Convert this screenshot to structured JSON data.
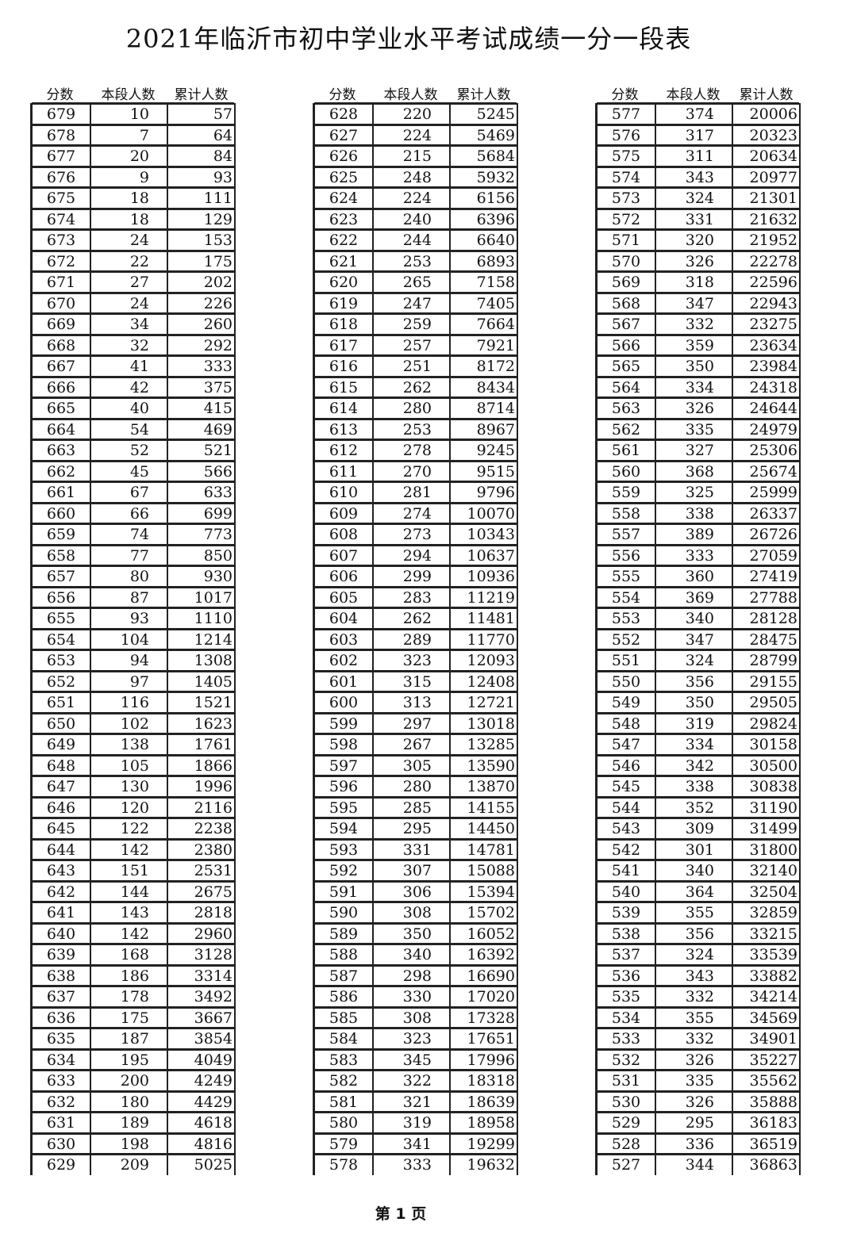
{
  "title": "2021年临沂市初中学业水平考试成绩一分一段表",
  "headers": [
    "分数",
    "本段人数",
    "累计人数"
  ],
  "footer": "第 1 页",
  "tables": [
    {
      "rows": [
        [
          "679",
          "10",
          "57"
        ],
        [
          "678",
          "7",
          "64"
        ],
        [
          "677",
          "20",
          "84"
        ],
        [
          "676",
          "9",
          "93"
        ],
        [
          "675",
          "18",
          "111"
        ],
        [
          "674",
          "18",
          "129"
        ],
        [
          "673",
          "24",
          "153"
        ],
        [
          "672",
          "22",
          "175"
        ],
        [
          "671",
          "27",
          "202"
        ],
        [
          "670",
          "24",
          "226"
        ],
        [
          "669",
          "34",
          "260"
        ],
        [
          "668",
          "32",
          "292"
        ],
        [
          "667",
          "41",
          "333"
        ],
        [
          "666",
          "42",
          "375"
        ],
        [
          "665",
          "40",
          "415"
        ],
        [
          "664",
          "54",
          "469"
        ],
        [
          "663",
          "52",
          "521"
        ],
        [
          "662",
          "45",
          "566"
        ],
        [
          "661",
          "67",
          "633"
        ],
        [
          "660",
          "66",
          "699"
        ],
        [
          "659",
          "74",
          "773"
        ],
        [
          "658",
          "77",
          "850"
        ],
        [
          "657",
          "80",
          "930"
        ],
        [
          "656",
          "87",
          "1017"
        ],
        [
          "655",
          "93",
          "1110"
        ],
        [
          "654",
          "104",
          "1214"
        ],
        [
          "653",
          "94",
          "1308"
        ],
        [
          "652",
          "97",
          "1405"
        ],
        [
          "651",
          "116",
          "1521"
        ],
        [
          "650",
          "102",
          "1623"
        ],
        [
          "649",
          "138",
          "1761"
        ],
        [
          "648",
          "105",
          "1866"
        ],
        [
          "647",
          "130",
          "1996"
        ],
        [
          "646",
          "120",
          "2116"
        ],
        [
          "645",
          "122",
          "2238"
        ],
        [
          "644",
          "142",
          "2380"
        ],
        [
          "643",
          "151",
          "2531"
        ],
        [
          "642",
          "144",
          "2675"
        ],
        [
          "641",
          "143",
          "2818"
        ],
        [
          "640",
          "142",
          "2960"
        ],
        [
          "639",
          "168",
          "3128"
        ],
        [
          "638",
          "186",
          "3314"
        ],
        [
          "637",
          "178",
          "3492"
        ],
        [
          "636",
          "175",
          "3667"
        ],
        [
          "635",
          "187",
          "3854"
        ],
        [
          "634",
          "195",
          "4049"
        ],
        [
          "633",
          "200",
          "4249"
        ],
        [
          "632",
          "180",
          "4429"
        ],
        [
          "631",
          "189",
          "4618"
        ],
        [
          "630",
          "198",
          "4816"
        ],
        [
          "629",
          "209",
          "5025"
        ]
      ]
    },
    {
      "rows": [
        [
          "628",
          "220",
          "5245"
        ],
        [
          "627",
          "224",
          "5469"
        ],
        [
          "626",
          "215",
          "5684"
        ],
        [
          "625",
          "248",
          "5932"
        ],
        [
          "624",
          "224",
          "6156"
        ],
        [
          "623",
          "240",
          "6396"
        ],
        [
          "622",
          "244",
          "6640"
        ],
        [
          "621",
          "253",
          "6893"
        ],
        [
          "620",
          "265",
          "7158"
        ],
        [
          "619",
          "247",
          "7405"
        ],
        [
          "618",
          "259",
          "7664"
        ],
        [
          "617",
          "257",
          "7921"
        ],
        [
          "616",
          "251",
          "8172"
        ],
        [
          "615",
          "262",
          "8434"
        ],
        [
          "614",
          "280",
          "8714"
        ],
        [
          "613",
          "253",
          "8967"
        ],
        [
          "612",
          "278",
          "9245"
        ],
        [
          "611",
          "270",
          "9515"
        ],
        [
          "610",
          "281",
          "9796"
        ],
        [
          "609",
          "274",
          "10070"
        ],
        [
          "608",
          "273",
          "10343"
        ],
        [
          "607",
          "294",
          "10637"
        ],
        [
          "606",
          "299",
          "10936"
        ],
        [
          "605",
          "283",
          "11219"
        ],
        [
          "604",
          "262",
          "11481"
        ],
        [
          "603",
          "289",
          "11770"
        ],
        [
          "602",
          "323",
          "12093"
        ],
        [
          "601",
          "315",
          "12408"
        ],
        [
          "600",
          "313",
          "12721"
        ],
        [
          "599",
          "297",
          "13018"
        ],
        [
          "598",
          "267",
          "13285"
        ],
        [
          "597",
          "305",
          "13590"
        ],
        [
          "596",
          "280",
          "13870"
        ],
        [
          "595",
          "285",
          "14155"
        ],
        [
          "594",
          "295",
          "14450"
        ],
        [
          "593",
          "331",
          "14781"
        ],
        [
          "592",
          "307",
          "15088"
        ],
        [
          "591",
          "306",
          "15394"
        ],
        [
          "590",
          "308",
          "15702"
        ],
        [
          "589",
          "350",
          "16052"
        ],
        [
          "588",
          "340",
          "16392"
        ],
        [
          "587",
          "298",
          "16690"
        ],
        [
          "586",
          "330",
          "17020"
        ],
        [
          "585",
          "308",
          "17328"
        ],
        [
          "584",
          "323",
          "17651"
        ],
        [
          "583",
          "345",
          "17996"
        ],
        [
          "582",
          "322",
          "18318"
        ],
        [
          "581",
          "321",
          "18639"
        ],
        [
          "580",
          "319",
          "18958"
        ],
        [
          "579",
          "341",
          "19299"
        ],
        [
          "578",
          "333",
          "19632"
        ]
      ]
    },
    {
      "rows": [
        [
          "577",
          "374",
          "20006"
        ],
        [
          "576",
          "317",
          "20323"
        ],
        [
          "575",
          "311",
          "20634"
        ],
        [
          "574",
          "343",
          "20977"
        ],
        [
          "573",
          "324",
          "21301"
        ],
        [
          "572",
          "331",
          "21632"
        ],
        [
          "571",
          "320",
          "21952"
        ],
        [
          "570",
          "326",
          "22278"
        ],
        [
          "569",
          "318",
          "22596"
        ],
        [
          "568",
          "347",
          "22943"
        ],
        [
          "567",
          "332",
          "23275"
        ],
        [
          "566",
          "359",
          "23634"
        ],
        [
          "565",
          "350",
          "23984"
        ],
        [
          "564",
          "334",
          "24318"
        ],
        [
          "563",
          "326",
          "24644"
        ],
        [
          "562",
          "335",
          "24979"
        ],
        [
          "561",
          "327",
          "25306"
        ],
        [
          "560",
          "368",
          "25674"
        ],
        [
          "559",
          "325",
          "25999"
        ],
        [
          "558",
          "338",
          "26337"
        ],
        [
          "557",
          "389",
          "26726"
        ],
        [
          "556",
          "333",
          "27059"
        ],
        [
          "555",
          "360",
          "27419"
        ],
        [
          "554",
          "369",
          "27788"
        ],
        [
          "553",
          "340",
          "28128"
        ],
        [
          "552",
          "347",
          "28475"
        ],
        [
          "551",
          "324",
          "28799"
        ],
        [
          "550",
          "356",
          "29155"
        ],
        [
          "549",
          "350",
          "29505"
        ],
        [
          "548",
          "319",
          "29824"
        ],
        [
          "547",
          "334",
          "30158"
        ],
        [
          "546",
          "342",
          "30500"
        ],
        [
          "545",
          "338",
          "30838"
        ],
        [
          "544",
          "352",
          "31190"
        ],
        [
          "543",
          "309",
          "31499"
        ],
        [
          "542",
          "301",
          "31800"
        ],
        [
          "541",
          "340",
          "32140"
        ],
        [
          "540",
          "364",
          "32504"
        ],
        [
          "539",
          "355",
          "32859"
        ],
        [
          "538",
          "356",
          "33215"
        ],
        [
          "537",
          "324",
          "33539"
        ],
        [
          "536",
          "343",
          "33882"
        ],
        [
          "535",
          "332",
          "34214"
        ],
        [
          "534",
          "355",
          "34569"
        ],
        [
          "533",
          "332",
          "34901"
        ],
        [
          "532",
          "326",
          "35227"
        ],
        [
          "531",
          "335",
          "35562"
        ],
        [
          "530",
          "326",
          "35888"
        ],
        [
          "529",
          "295",
          "36183"
        ],
        [
          "528",
          "336",
          "36519"
        ],
        [
          "527",
          "344",
          "36863"
        ]
      ]
    }
  ]
}
